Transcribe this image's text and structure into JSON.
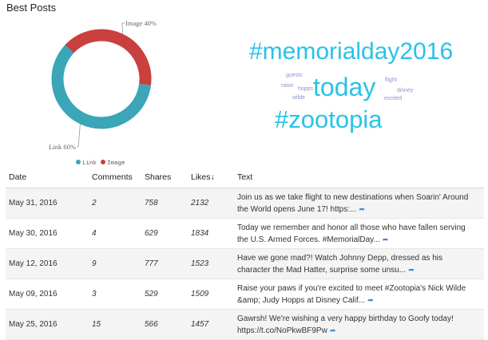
{
  "title": "Best Posts",
  "chart_data": {
    "type": "pie",
    "variant": "donut",
    "categories": [
      "Link",
      "Image"
    ],
    "values": [
      60,
      40
    ],
    "colors": [
      "#3aa6b8",
      "#c9403f"
    ],
    "slice_labels": [
      "Link 60%",
      "Image 40%"
    ],
    "legend": [
      "Link",
      "Image"
    ],
    "legend_placement": "bottom"
  },
  "word_cloud": {
    "large": [
      "#memorialday2016",
      "today",
      "#zootopia"
    ],
    "small": [
      "guests",
      "raise",
      "hopps",
      "wilde",
      "flight",
      "disney",
      "excited"
    ]
  },
  "table": {
    "headers": {
      "date": "Date",
      "comments": "Comments",
      "shares": "Shares",
      "likes": "Likes↓",
      "text": "Text"
    },
    "rows": [
      {
        "date": "May 31, 2016",
        "comments": "2",
        "shares": "758",
        "likes": "2132",
        "text": "Join us as we take flight to new destinations when Soarin' Around the World opens June 17! https:..."
      },
      {
        "date": "May 30, 2016",
        "comments": "4",
        "shares": "629",
        "likes": "1834",
        "text": "Today we remember and honor all those who have fallen serving the U.S. Armed Forces. #MemorialDay..."
      },
      {
        "date": "May 12, 2016",
        "comments": "9",
        "shares": "777",
        "likes": "1523",
        "text": "Have we gone mad?! Watch Johnny Depp, dressed as his character the Mad Hatter, surprise some unsu..."
      },
      {
        "date": "May 09, 2016",
        "comments": "3",
        "shares": "529",
        "likes": "1509",
        "text": "Raise your paws if you're excited to meet #Zootopia's Nick Wilde &amp; Judy Hopps at Disney Calif..."
      },
      {
        "date": "May 25, 2016",
        "comments": "15",
        "shares": "566",
        "likes": "1457",
        "text": "Gawrsh! We're wishing a very happy birthday to Goofy today! https://t.co/NoPkwBF9Pw"
      }
    ]
  }
}
